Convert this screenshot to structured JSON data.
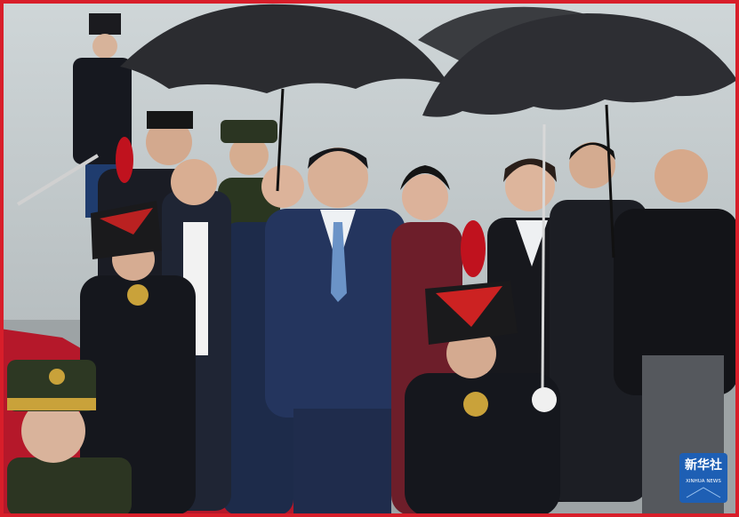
{
  "watermark": {
    "brand": "新华社",
    "subtitle": "XINHUA NEWS"
  }
}
